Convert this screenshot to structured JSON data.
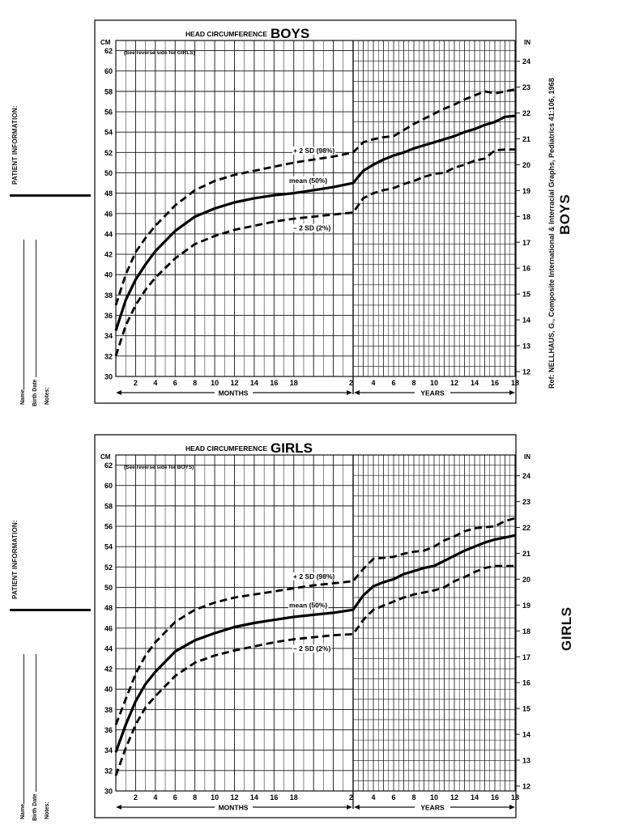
{
  "panels": [
    {
      "id": "boys",
      "title_prefix": "HEAD CIRCUMFERENCE",
      "title_main": "BOYS",
      "note": "(See reverse side for GIRLS)",
      "unit_left": "CM",
      "unit_right": "IN",
      "left_label": "PATIENT INFORMATION:",
      "fields": [
        "Name",
        "Birth Date",
        "Notes:"
      ],
      "side_title": "BOYS",
      "reference": "Ref: NELLHAUS, G., Composite International & Interracial Graphs, Pediatrics 41:106, 1968",
      "chart_data": {
        "type": "line",
        "title": "HEAD CIRCUMFERENCE BOYS",
        "y_cm_ticks": [
          "30",
          "32",
          "34",
          "36",
          "38",
          "40",
          "42",
          "44",
          "46",
          "48",
          "50",
          "52",
          "54",
          "56",
          "58",
          "60",
          "62"
        ],
        "y_in_ticks": [
          "12",
          "13",
          "14",
          "15",
          "16",
          "17",
          "18",
          "19",
          "20",
          "21",
          "22",
          "23",
          "24"
        ],
        "month_ticks": [
          "2",
          "4",
          "6",
          "8",
          "10",
          "12",
          "14",
          "16",
          "18"
        ],
        "year_ticks": [
          "2",
          "4",
          "6",
          "8",
          "10",
          "12",
          "14",
          "16",
          "18"
        ],
        "x_label_months": "MONTHS",
        "x_label_years": "YEARS",
        "ylim_cm": [
          30,
          63
        ],
        "series": [
          {
            "name": "+ 2 SD (98%)",
            "style": "dashed",
            "months": [
              0,
              1,
              2,
              3,
              4,
              6,
              8,
              10,
              12,
              14,
              16,
              18,
              20,
              22,
              24
            ],
            "month_values": [
              37.0,
              40.0,
              42.2,
              43.6,
              44.8,
              46.8,
              48.3,
              49.2,
              49.8,
              50.2,
              50.6,
              51.0,
              51.3,
              51.6,
              52.0
            ],
            "years": [
              2,
              3,
              4,
              5,
              6,
              7,
              8,
              9,
              10,
              11,
              12,
              13,
              14,
              15,
              16,
              17,
              18
            ],
            "year_values": [
              52.0,
              53.0,
              53.3,
              53.5,
              53.6,
              54.2,
              54.8,
              55.3,
              55.8,
              56.3,
              56.7,
              57.2,
              57.6,
              58.0,
              57.8,
              58.0,
              58.2
            ]
          },
          {
            "name": "mean (50%)",
            "style": "solid",
            "months": [
              0,
              1,
              2,
              3,
              4,
              6,
              8,
              10,
              12,
              14,
              16,
              18,
              20,
              22,
              24
            ],
            "month_values": [
              34.5,
              37.5,
              39.5,
              41.0,
              42.3,
              44.3,
              45.7,
              46.5,
              47.1,
              47.5,
              47.8,
              48.0,
              48.3,
              48.6,
              49.0
            ],
            "years": [
              2,
              3,
              4,
              5,
              6,
              7,
              8,
              9,
              10,
              11,
              12,
              13,
              14,
              15,
              16,
              17,
              18
            ],
            "year_values": [
              49.0,
              50.2,
              50.8,
              51.3,
              51.7,
              52.0,
              52.4,
              52.7,
              53.0,
              53.3,
              53.6,
              54.0,
              54.3,
              54.7,
              55.0,
              55.5,
              55.6
            ]
          },
          {
            "name": "– 2 SD (2%)",
            "style": "dashed",
            "months": [
              0,
              1,
              2,
              3,
              4,
              6,
              8,
              10,
              12,
              14,
              16,
              18,
              20,
              22,
              24
            ],
            "month_values": [
              32.0,
              35.0,
              37.0,
              38.5,
              39.7,
              41.6,
              43.0,
              43.8,
              44.4,
              44.8,
              45.2,
              45.5,
              45.7,
              45.9,
              46.1
            ],
            "years": [
              2,
              3,
              4,
              5,
              6,
              7,
              8,
              9,
              10,
              11,
              12,
              13,
              14,
              15,
              16,
              17,
              18
            ],
            "year_values": [
              46.1,
              47.5,
              48.0,
              48.3,
              48.5,
              48.9,
              49.2,
              49.6,
              49.9,
              50.0,
              50.5,
              50.8,
              51.2,
              51.4,
              52.2,
              52.3,
              52.3
            ]
          }
        ]
      }
    },
    {
      "id": "girls",
      "title_prefix": "HEAD CIRCUMFERENCE",
      "title_main": "GIRLS",
      "note": "(See reverse side for BOYS)",
      "unit_left": "CM",
      "unit_right": "IN",
      "left_label": "PATIENT INFORMATION:",
      "fields": [
        "Name",
        "Birth Date",
        "Notes:"
      ],
      "side_title": "GIRLS",
      "reference": "",
      "chart_data": {
        "type": "line",
        "title": "HEAD CIRCUMFERENCE GIRLS",
        "y_cm_ticks": [
          "30",
          "32",
          "34",
          "36",
          "38",
          "40",
          "42",
          "44",
          "46",
          "48",
          "50",
          "52",
          "54",
          "56",
          "58",
          "60",
          "62"
        ],
        "y_in_ticks": [
          "12",
          "13",
          "14",
          "15",
          "16",
          "17",
          "18",
          "19",
          "20",
          "21",
          "22",
          "23",
          "24"
        ],
        "month_ticks": [
          "2",
          "4",
          "6",
          "8",
          "10",
          "12",
          "14",
          "16",
          "18"
        ],
        "year_ticks": [
          "2",
          "4",
          "6",
          "8",
          "10",
          "12",
          "14",
          "16",
          "18"
        ],
        "x_label_months": "MONTHS",
        "x_label_years": "YEARS",
        "ylim_cm": [
          30,
          63
        ],
        "series": [
          {
            "name": "+ 2 SD (98%)",
            "style": "dashed",
            "months": [
              0,
              1,
              2,
              3,
              4,
              6,
              8,
              10,
              12,
              14,
              16,
              18,
              20,
              22,
              24
            ],
            "month_values": [
              36.5,
              39.0,
              41.5,
              43.3,
              44.6,
              46.6,
              47.8,
              48.5,
              49.0,
              49.3,
              49.6,
              49.9,
              50.2,
              50.4,
              50.6
            ],
            "years": [
              2,
              3,
              4,
              5,
              6,
              7,
              8,
              9,
              10,
              11,
              12,
              13,
              14,
              15,
              16,
              17,
              18
            ],
            "year_values": [
              50.6,
              51.8,
              52.8,
              52.9,
              53.0,
              53.3,
              53.5,
              53.6,
              54.0,
              54.6,
              55.0,
              55.5,
              55.8,
              55.9,
              56.0,
              56.5,
              56.8
            ]
          },
          {
            "name": "mean (50%)",
            "style": "solid",
            "months": [
              0,
              1,
              2,
              3,
              4,
              6,
              8,
              10,
              12,
              14,
              16,
              18,
              20,
              22,
              24
            ],
            "month_values": [
              33.8,
              36.5,
              38.8,
              40.5,
              41.7,
              43.7,
              44.8,
              45.5,
              46.1,
              46.5,
              46.8,
              47.1,
              47.3,
              47.5,
              47.8
            ],
            "years": [
              2,
              3,
              4,
              5,
              6,
              7,
              8,
              9,
              10,
              11,
              12,
              13,
              14,
              15,
              16,
              17,
              18
            ],
            "year_values": [
              47.8,
              49.2,
              50.1,
              50.5,
              50.8,
              51.3,
              51.6,
              51.9,
              52.1,
              52.6,
              53.1,
              53.6,
              54.0,
              54.4,
              54.7,
              54.9,
              55.1
            ]
          },
          {
            "name": "– 2 SD (2%)",
            "style": "dashed",
            "months": [
              0,
              1,
              2,
              3,
              4,
              6,
              8,
              10,
              12,
              14,
              16,
              18,
              20,
              22,
              24
            ],
            "month_values": [
              31.5,
              34.2,
              36.5,
              38.2,
              39.3,
              41.3,
              42.6,
              43.3,
              43.8,
              44.2,
              44.6,
              44.9,
              45.1,
              45.3,
              45.4
            ],
            "years": [
              2,
              3,
              4,
              5,
              6,
              7,
              8,
              9,
              10,
              11,
              12,
              13,
              14,
              15,
              16,
              17,
              18
            ],
            "year_values": [
              45.4,
              46.8,
              47.8,
              48.2,
              48.6,
              49.0,
              49.3,
              49.5,
              49.7,
              50.0,
              50.6,
              51.0,
              51.5,
              51.9,
              52.1,
              52.1,
              52.1
            ]
          }
        ]
      }
    }
  ]
}
